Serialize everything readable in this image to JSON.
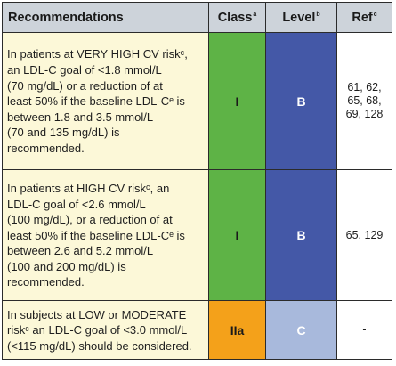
{
  "colors": {
    "header_bg": "#cdd3da",
    "recommendation_bg": "#fcf8d8",
    "class_I": "#5eb346",
    "class_IIa": "#f4a11a",
    "level_B": "#4458a7",
    "level_C": "#a8b9dc"
  },
  "header": {
    "recommendations": "Recommendations",
    "class_label": "Class",
    "class_sup": "a",
    "level_label": "Level",
    "level_sup": "b",
    "ref_label": "Ref",
    "ref_sup": "c"
  },
  "rows": [
    {
      "lines": [
        "In patients at VERY HIGH CV riskᶜ,",
        "an LDL-C goal of <1.8 mmol/L",
        "(70 mg/dL) or a reduction of at",
        "least 50% if the baseline LDL-Cᵉ is",
        "between 1.8 and 3.5 mmol/L",
        "(70 and 135 mg/dL) is",
        "recommended."
      ],
      "class": "I",
      "level": "B",
      "ref_lines": [
        "61, 62,",
        "65, 68,",
        "69, 128"
      ]
    },
    {
      "lines": [
        "In patients at HIGH CV riskᶜ, an",
        "LDL-C goal of <2.6 mmol/L",
        "(100 mg/dL), or a reduction of at",
        "least 50% if the baseline LDL-Cᵉ is",
        "between 2.6 and 5.2 mmol/L",
        "(100 and 200 mg/dL) is",
        "recommended."
      ],
      "class": "I",
      "level": "B",
      "ref_lines": [
        "65, 129"
      ]
    },
    {
      "lines": [
        "In subjects at LOW or MODERATE",
        "riskᶜ an LDL-C goal of <3.0 mmol/L",
        "(<115 mg/dL) should be considered."
      ],
      "class": "IIa",
      "level": "C",
      "ref_lines": [
        "-"
      ]
    }
  ]
}
